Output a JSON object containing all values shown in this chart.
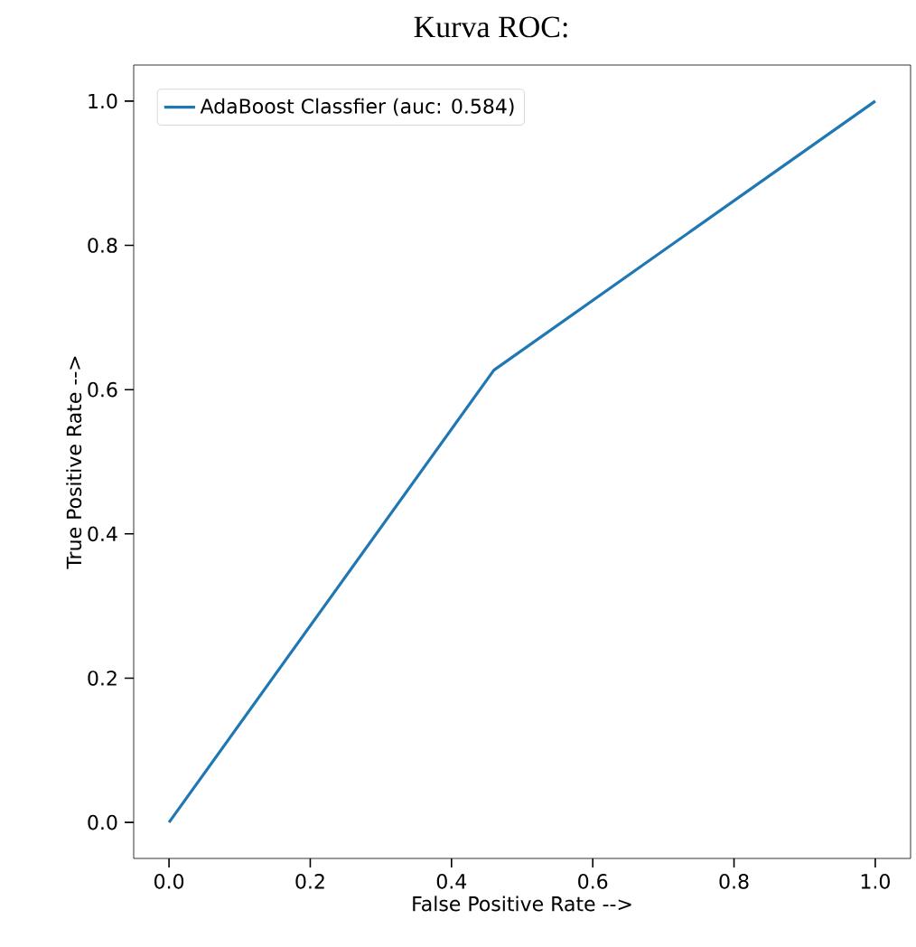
{
  "chart_data": {
    "type": "line",
    "title": "Kurva ROC:",
    "xlabel": "False Positive Rate -->",
    "ylabel": "True Positive Rate -->",
    "x": [
      0,
      0.46,
      1
    ],
    "series": [
      {
        "name": "AdaBoost Classfier (auc: 0.584)",
        "color": "#1f77b4",
        "values": [
          0,
          0.627,
          1
        ]
      }
    ],
    "xlim": [
      -0.05,
      1.05
    ],
    "ylim": [
      -0.05,
      1.05
    ],
    "xticks": [
      {
        "value": 0,
        "label": "0.0"
      },
      0.2,
      0.4,
      0.6,
      0.8,
      {
        "value": 1,
        "label": "1.0"
      }
    ],
    "yticks": [
      {
        "value": 0,
        "label": "0.0"
      },
      0.2,
      0.4,
      0.6,
      0.8,
      {
        "value": 1,
        "label": "1.0"
      }
    ],
    "legend": "top left",
    "marker": "none",
    "line_style": "solid",
    "grid": false
  }
}
